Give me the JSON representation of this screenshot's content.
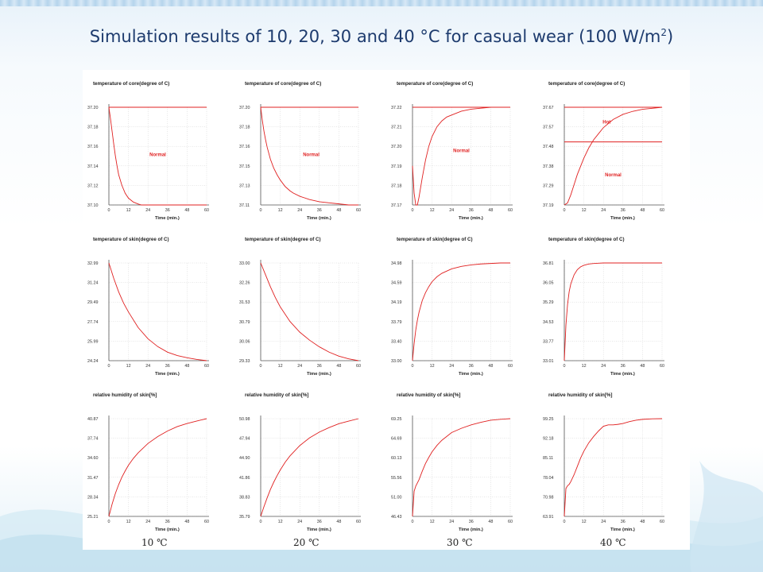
{
  "page": {
    "title_main": "Simulation results of 10, 20, 30 and 40 °C for casual wear (100 W/m",
    "title_sup": "2",
    "title_end": ")"
  },
  "column_labels": [
    "10 ℃",
    "20 ℃",
    "30 ℃",
    "40 ℃"
  ],
  "colors": {
    "curve": "#e02020",
    "axis": "#555555",
    "grid": "#cfcfcf",
    "title": "#1d3b6e"
  },
  "chart_data": [
    {
      "type": "line",
      "title": "temperature of core(degree of C)",
      "xlabel": "Time (min.)",
      "ylabel": "",
      "xlim": [
        0,
        60
      ],
      "xticks": [
        "0",
        "12",
        "24",
        "36",
        "48",
        "60"
      ],
      "ylim": [
        37.1,
        37.2
      ],
      "yticks": [
        "37.20",
        "37.18",
        "37.16",
        "37.14",
        "37.12",
        "37.10"
      ],
      "x": [
        0,
        1,
        2,
        3,
        4,
        5,
        6,
        8,
        10,
        12,
        15,
        18,
        20,
        24,
        30,
        36,
        48,
        60
      ],
      "y": [
        37.2,
        37.188,
        37.175,
        37.162,
        37.15,
        37.14,
        37.131,
        37.12,
        37.112,
        37.107,
        37.103,
        37.101,
        37.1,
        37.1,
        37.1,
        37.1,
        37.1,
        37.1
      ],
      "hlines": [
        37.2
      ],
      "annotations": [
        {
          "text": "Normal",
          "x": 30,
          "y": 37.15
        }
      ]
    },
    {
      "type": "line",
      "title": "temperature of core(degree of C)",
      "xlabel": "Time (min.)",
      "ylabel": "",
      "xlim": [
        0,
        60
      ],
      "xticks": [
        "0",
        "12",
        "24",
        "36",
        "48",
        "60"
      ],
      "ylim": [
        37.11,
        37.2
      ],
      "yticks": [
        "37.20",
        "37.18",
        "37.16",
        "37.15",
        "37.13",
        "37.11"
      ],
      "x": [
        0,
        1,
        2,
        3,
        4,
        6,
        8,
        10,
        12,
        15,
        18,
        20,
        24,
        30,
        36,
        42,
        48,
        54,
        60
      ],
      "y": [
        37.2,
        37.188,
        37.178,
        37.17,
        37.163,
        37.152,
        37.144,
        37.138,
        37.133,
        37.127,
        37.123,
        37.121,
        37.118,
        37.115,
        37.113,
        37.112,
        37.111,
        37.11,
        37.11
      ],
      "hlines": [
        37.2
      ],
      "annotations": [
        {
          "text": "Normal",
          "x": 31,
          "y": 37.155
        }
      ]
    },
    {
      "type": "line",
      "title": "temperature of core(degree of C)",
      "xlabel": "Time (min.)",
      "ylabel": "",
      "xlim": [
        0,
        60
      ],
      "xticks": [
        "0",
        "12",
        "24",
        "36",
        "48",
        "60"
      ],
      "ylim": [
        37.17,
        37.22
      ],
      "yticks": [
        "37.22",
        "37.21",
        "37.20",
        "37.19",
        "37.18",
        "37.17"
      ],
      "x": [
        0,
        1,
        2,
        3,
        4,
        6,
        8,
        10,
        12,
        15,
        18,
        21,
        24,
        30,
        36,
        42,
        48,
        54,
        60
      ],
      "y": [
        37.19,
        37.176,
        37.17,
        37.17,
        37.174,
        37.184,
        37.193,
        37.2,
        37.205,
        37.21,
        37.213,
        37.215,
        37.216,
        37.218,
        37.219,
        37.2195,
        37.22,
        37.22,
        37.22
      ],
      "hlines": [
        37.22
      ],
      "annotations": [
        {
          "text": "Normal",
          "x": 30,
          "y": 37.197
        }
      ]
    },
    {
      "type": "line",
      "title": "temperature of core(degree of C)",
      "xlabel": "Time (min.)",
      "ylabel": "",
      "xlim": [
        0,
        60
      ],
      "xticks": [
        "0",
        "12",
        "24",
        "36",
        "48",
        "60"
      ],
      "ylim": [
        37.19,
        37.67
      ],
      "yticks": [
        "37.67",
        "37.57",
        "37.48",
        "37.38",
        "37.29",
        "37.19"
      ],
      "x": [
        0,
        2,
        4,
        6,
        8,
        10,
        12,
        15,
        18,
        21,
        24,
        30,
        36,
        42,
        48,
        54,
        60
      ],
      "y": [
        37.19,
        37.2,
        37.24,
        37.29,
        37.34,
        37.38,
        37.42,
        37.47,
        37.51,
        37.54,
        37.57,
        37.61,
        37.635,
        37.65,
        37.66,
        37.665,
        37.67
      ],
      "hlines": [
        37.67,
        37.5
      ],
      "annotations": [
        {
          "text": "Hot",
          "x": 26,
          "y": 37.59
        },
        {
          "text": "Normal",
          "x": 30,
          "y": 37.33
        }
      ]
    },
    {
      "type": "line",
      "title": "temperature of skin(degree of C)",
      "xlabel": "Time (min.)",
      "ylabel": "",
      "xlim": [
        0,
        60
      ],
      "xticks": [
        "0",
        "12",
        "24",
        "36",
        "48",
        "60"
      ],
      "ylim": [
        24.24,
        32.99
      ],
      "yticks": [
        "32.99",
        "31.24",
        "29.49",
        "27.74",
        "25.99",
        "24.24"
      ],
      "x": [
        0,
        3,
        6,
        9,
        12,
        18,
        24,
        30,
        36,
        42,
        48,
        54,
        60
      ],
      "y": [
        32.99,
        31.6,
        30.4,
        29.4,
        28.6,
        27.2,
        26.2,
        25.5,
        25.0,
        24.7,
        24.5,
        24.35,
        24.24
      ],
      "hlines": [],
      "annotations": []
    },
    {
      "type": "line",
      "title": "temperature of skin(degree of C)",
      "xlabel": "Time (min.)",
      "ylabel": "",
      "xlim": [
        0,
        60
      ],
      "xticks": [
        "0",
        "12",
        "24",
        "36",
        "48",
        "60"
      ],
      "ylim": [
        29.33,
        33.0
      ],
      "yticks": [
        "33.00",
        "32.26",
        "31.53",
        "30.79",
        "30.06",
        "29.33"
      ],
      "x": [
        0,
        3,
        6,
        9,
        12,
        18,
        24,
        30,
        36,
        42,
        48,
        54,
        60
      ],
      "y": [
        33.0,
        32.55,
        32.1,
        31.7,
        31.35,
        30.8,
        30.4,
        30.1,
        29.85,
        29.65,
        29.5,
        29.4,
        29.33
      ],
      "hlines": [],
      "annotations": []
    },
    {
      "type": "line",
      "title": "temperature of skin(degree of C)",
      "xlabel": "Time (min.)",
      "ylabel": "",
      "xlim": [
        0,
        60
      ],
      "xticks": [
        "0",
        "12",
        "24",
        "36",
        "48",
        "60"
      ],
      "ylim": [
        33.0,
        34.98
      ],
      "yticks": [
        "34.98",
        "34.59",
        "34.19",
        "33.79",
        "33.40",
        "33.00"
      ],
      "x": [
        0,
        1,
        2,
        3,
        4,
        6,
        8,
        10,
        12,
        15,
        18,
        24,
        30,
        36,
        42,
        48,
        54,
        60
      ],
      "y": [
        33.0,
        33.35,
        33.62,
        33.82,
        33.98,
        34.22,
        34.38,
        34.5,
        34.6,
        34.7,
        34.77,
        34.86,
        34.91,
        34.94,
        34.96,
        34.97,
        34.98,
        34.98
      ],
      "hlines": [],
      "annotations": []
    },
    {
      "type": "line",
      "title": "temperature of skin(degree of C)",
      "xlabel": "Time (min.)",
      "ylabel": "",
      "xlim": [
        0,
        60
      ],
      "xticks": [
        "0",
        "12",
        "24",
        "36",
        "48",
        "60"
      ],
      "ylim": [
        33.01,
        36.81
      ],
      "yticks": [
        "36.81",
        "36.05",
        "35.29",
        "34.53",
        "33.77",
        "33.01"
      ],
      "x": [
        0,
        1,
        2,
        3,
        4,
        6,
        8,
        10,
        12,
        15,
        18,
        21,
        24,
        30,
        36,
        42,
        48,
        54,
        60
      ],
      "y": [
        33.01,
        34.4,
        35.2,
        35.7,
        36.0,
        36.35,
        36.55,
        36.66,
        36.72,
        36.77,
        36.79,
        36.8,
        36.81,
        36.81,
        36.81,
        36.81,
        36.81,
        36.81,
        36.81
      ],
      "hlines": [],
      "annotations": []
    },
    {
      "type": "line",
      "title": "relative humidity of skin[%]",
      "xlabel": "Time (min.)",
      "ylabel": "",
      "xlim": [
        0,
        60
      ],
      "xticks": [
        "0",
        "12",
        "24",
        "36",
        "48",
        "60"
      ],
      "ylim": [
        25.21,
        40.87
      ],
      "yticks": [
        "40.87",
        "37.74",
        "34.60",
        "31.47",
        "28.34",
        "25.21"
      ],
      "x": [
        0,
        2,
        4,
        6,
        8,
        10,
        12,
        15,
        18,
        24,
        30,
        36,
        42,
        48,
        54,
        60
      ],
      "y": [
        25.21,
        27.2,
        28.9,
        30.3,
        31.5,
        32.5,
        33.4,
        34.5,
        35.4,
        36.9,
        38.0,
        38.9,
        39.6,
        40.1,
        40.5,
        40.87
      ],
      "hlines": [],
      "annotations": []
    },
    {
      "type": "line",
      "title": "relative humidity of skin[%]",
      "xlabel": "Time (min.)",
      "ylabel": "",
      "xlim": [
        0,
        60
      ],
      "xticks": [
        "0",
        "12",
        "24",
        "36",
        "48",
        "60"
      ],
      "ylim": [
        35.79,
        50.98
      ],
      "yticks": [
        "50.98",
        "47.94",
        "44.90",
        "41.86",
        "38.83",
        "35.79"
      ],
      "x": [
        0,
        2,
        4,
        6,
        8,
        10,
        12,
        15,
        18,
        24,
        30,
        36,
        42,
        48,
        54,
        60
      ],
      "y": [
        35.79,
        37.3,
        38.7,
        40.0,
        41.1,
        42.1,
        43.0,
        44.2,
        45.2,
        46.8,
        48.0,
        48.9,
        49.6,
        50.2,
        50.6,
        50.98
      ],
      "hlines": [],
      "annotations": []
    },
    {
      "type": "line",
      "title": "relative humidity of skin[%]",
      "xlabel": "Time (min.)",
      "ylabel": "",
      "xlim": [
        0,
        60
      ],
      "xticks": [
        "0",
        "12",
        "24",
        "36",
        "48",
        "60"
      ],
      "ylim": [
        46.43,
        69.25
      ],
      "yticks": [
        "69.25",
        "64.69",
        "60.13",
        "55.56",
        "51.00",
        "46.43"
      ],
      "x": [
        0,
        1,
        2,
        4,
        6,
        8,
        10,
        12,
        15,
        18,
        24,
        30,
        36,
        42,
        48,
        54,
        60
      ],
      "y": [
        46.43,
        52.3,
        53.5,
        55.0,
        57.0,
        58.8,
        60.2,
        61.5,
        63.0,
        64.2,
        66.0,
        67.0,
        67.8,
        68.4,
        68.9,
        69.1,
        69.25
      ],
      "hlines": [],
      "annotations": []
    },
    {
      "type": "line",
      "title": "relative humidity of skin[%]",
      "xlabel": "Time (min.)",
      "ylabel": "",
      "xlim": [
        0,
        60
      ],
      "xticks": [
        "0",
        "12",
        "24",
        "36",
        "48",
        "60"
      ],
      "ylim": [
        63.91,
        99.25
      ],
      "yticks": [
        "99.25",
        "92.18",
        "85.11",
        "78.04",
        "70.98",
        "63.91"
      ],
      "x": [
        0,
        1,
        2,
        3,
        4,
        6,
        8,
        10,
        12,
        15,
        18,
        21,
        24,
        27,
        30,
        33,
        36,
        40,
        44,
        48,
        54,
        60
      ],
      "y": [
        63.91,
        74.0,
        75.0,
        75.5,
        76.5,
        79.0,
        82.0,
        85.0,
        87.5,
        90.5,
        92.8,
        94.8,
        96.5,
        97.0,
        97.0,
        97.2,
        97.5,
        98.2,
        98.7,
        99.0,
        99.2,
        99.25
      ],
      "hlines": [],
      "annotations": []
    }
  ]
}
